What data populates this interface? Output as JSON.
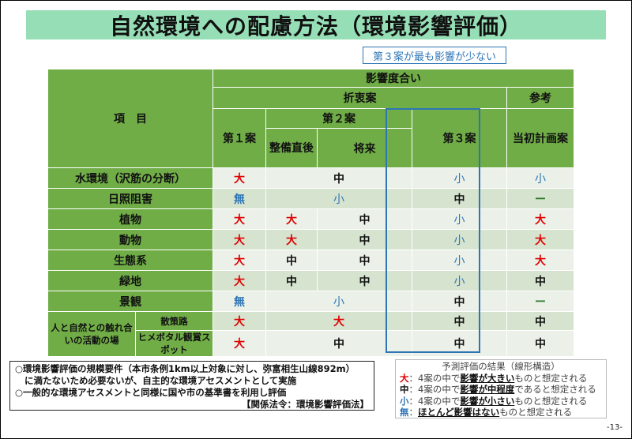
{
  "title": "自然環境への配慮方法（環境影響評価）",
  "callout": "第３案が最も影響が少ない",
  "table": {
    "header": {
      "item": "項　目",
      "impact": "影響度合い",
      "compromise": "折衷案",
      "reference": "参考",
      "plan1": "第１案",
      "plan2": "第２案",
      "plan2a": "整備直後",
      "plan2b": "将来",
      "plan3": "第３案",
      "initial": "当初計画案"
    },
    "rows": [
      {
        "item": "水環境（沢筋の分断）",
        "plan1": "大",
        "plan2": "中",
        "plan2_merged": true,
        "plan3": "小",
        "initial": "小"
      },
      {
        "item": "日照阻害",
        "plan1": "無",
        "plan2": "小",
        "plan2_merged": true,
        "plan3": "中",
        "initial": "ー"
      },
      {
        "item": "植物",
        "plan1": "大",
        "plan2a": "大",
        "plan2b": "中",
        "plan3": "小",
        "initial": "大"
      },
      {
        "item": "動物",
        "plan1": "大",
        "plan2a": "大",
        "plan2b": "中",
        "plan3": "小",
        "initial": "大"
      },
      {
        "item": "生態系",
        "plan1": "大",
        "plan2a": "中",
        "plan2b": "中",
        "plan3": "小",
        "initial": "大"
      },
      {
        "item": "緑地",
        "plan1": "大",
        "plan2a": "中",
        "plan2b": "中",
        "plan3": "小",
        "initial": "中"
      },
      {
        "item": "景観",
        "plan1": "無",
        "plan2": "小",
        "plan2_merged": true,
        "plan3": "中",
        "initial": "ー"
      }
    ],
    "group": {
      "label": "人と自然との触れ合いの活動の場",
      "rows": [
        {
          "item": "散策路",
          "plan1": "大",
          "plan2": "大",
          "plan3": "中",
          "initial": "中"
        },
        {
          "item": "ヒメボタル観賞スポット",
          "plan1": "大",
          "plan2": "中",
          "plan3": "中",
          "initial": "中"
        }
      ]
    }
  },
  "note": {
    "line1": "○環境影響評価の規模要件（本市条例1km以上対象に対し、弥富相生山線892m）",
    "line2": "に満たないため必要ないが、自主的な環境アセスメントとして実施",
    "line3": "○一般的な環境アセスメントと同様に国や市の基準書を利用し評価",
    "line4": "【関係法令：環境影響評価法】"
  },
  "legend": {
    "title": "予測評価の結果（線形構造）",
    "items": [
      {
        "key": "大",
        "pre": "：4案の中で",
        "em": "影響が大きい",
        "post": "ものと想定される",
        "color": "#e00000"
      },
      {
        "key": "中",
        "pre": "：4案の中で",
        "em": "影響が中程度",
        "post": "であると想定される",
        "color": "#111111"
      },
      {
        "key": "小",
        "pre": "：4案の中で",
        "em": "影響が小さい",
        "post": "ものと想定される",
        "color": "#2e75b6"
      },
      {
        "key": "無",
        "pre": "：",
        "em": "ほとんど影響はない",
        "post": "ものと想定される",
        "color": "#2e75b6"
      }
    ]
  },
  "page_number": "-13-",
  "colors": {
    "title_bg": "#96dfb6",
    "header_bg": "#70ad47",
    "large": "#e00000",
    "small": "#2e75b6",
    "highlight": "#2e75b6"
  }
}
